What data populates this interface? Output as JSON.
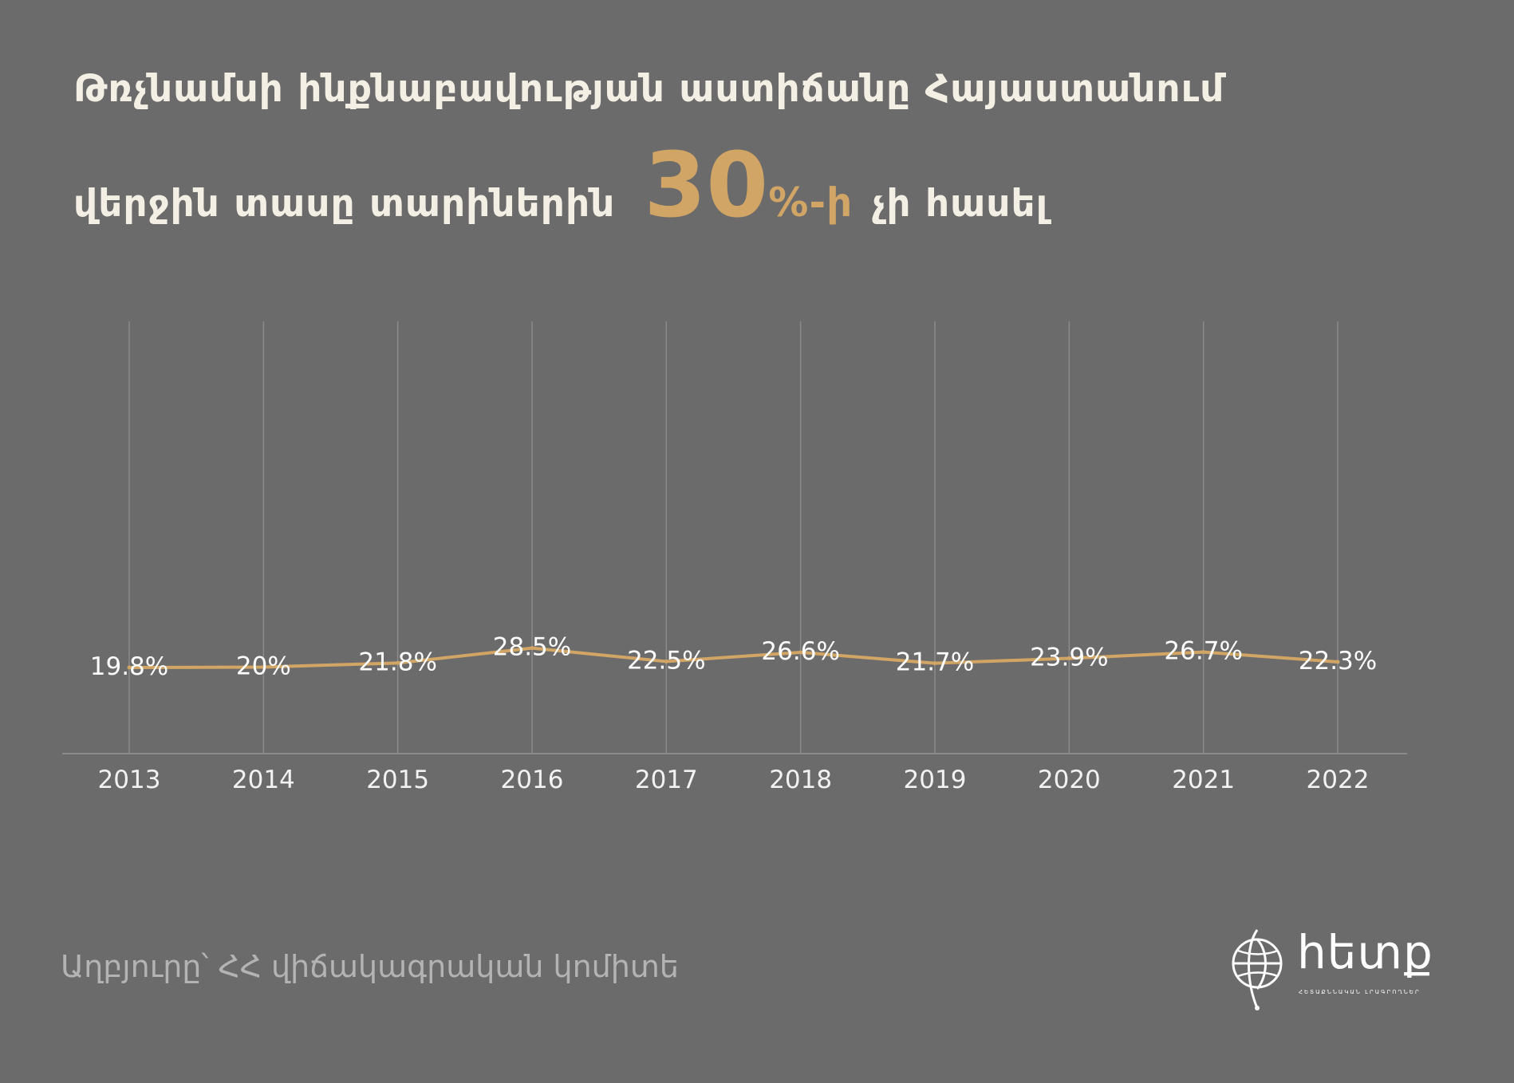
{
  "title": {
    "line1": "Թռչնամսի ինքնաբավության աստիճանը Հայաստանում",
    "line2_prefix": "վերջին տասը տարիներին",
    "line2_highlight_number": "30",
    "line2_highlight_suffix": "%-ի",
    "line2_suffix": "չի հասել"
  },
  "source": "Աղբյուրը՝  ՀՀ վիճակագրական կոմիտե",
  "logo": {
    "icon": "globe-pin-icon",
    "word": "hետք",
    "tagline": "ՀԵՏԱՔՆՆԱԿԱՆ ԼՐԱԳՐՈՂՆԵՐ"
  },
  "colors": {
    "background": "#6b6b6b",
    "title": "#f4efe4",
    "accent": "#d1a565",
    "line": "#d1a565",
    "labels": "#ffffff",
    "gridlines": "#8a8a8a",
    "source_text": "#b3b3b3"
  },
  "chart_data": {
    "type": "line",
    "title": "Թռչնամսի ինքնաբավության աստիճանը Հայաստանում",
    "categories": [
      "2013",
      "2014",
      "2015",
      "2016",
      "2017",
      "2018",
      "2019",
      "2020",
      "2021",
      "2022"
    ],
    "values": [
      19.8,
      20,
      21.8,
      28.5,
      22.5,
      26.6,
      21.7,
      23.9,
      26.7,
      22.3
    ],
    "data_labels": [
      "19.8%",
      "20%",
      "21.8%",
      "28.5%",
      "22.5%",
      "26.6%",
      "21.7%",
      "23.9%",
      "26.7%",
      "22.3%"
    ],
    "xlabel": "",
    "ylabel": "",
    "ylim": [
      0,
      100
    ],
    "grid": "vertical",
    "legend": "none"
  }
}
